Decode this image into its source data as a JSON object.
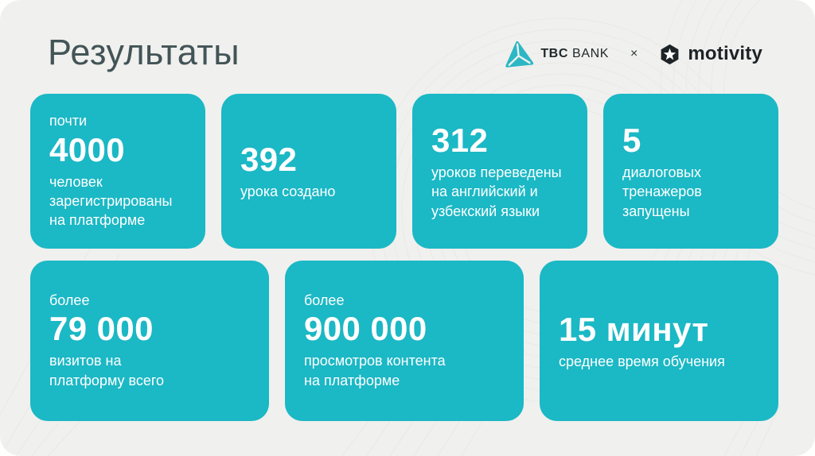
{
  "page": {
    "title": "Результаты"
  },
  "header": {
    "tbc_logo_text_bold": "TBC",
    "tbc_logo_text_regular": "BANK",
    "separator": "×",
    "motivity_logo_text": "motivity"
  },
  "colors": {
    "background": "#f0f0ee",
    "card": "#1bb8c5",
    "card_text": "#ffffff",
    "title": "#425456",
    "logo_dark": "#1d2326",
    "tbc_teal": "#2cb7c4"
  },
  "cards": [
    {
      "row": 1,
      "prefix": "почти",
      "value": "4000",
      "label": "человек\nзарегистрированы\nна платформе"
    },
    {
      "row": 1,
      "value": "392",
      "label": "урока создано"
    },
    {
      "row": 1,
      "value": "312",
      "label": "уроков переведены\nна английский и\nузбекский языки"
    },
    {
      "row": 1,
      "value": "5",
      "label": "диалоговых\nтренажеров\nзапущены"
    },
    {
      "row": 2,
      "prefix": "более",
      "value": "79 000",
      "label": "визитов на\nплатформу всего"
    },
    {
      "row": 2,
      "prefix": "более",
      "value": "900 000",
      "label": "просмотров контента\nна платформе"
    },
    {
      "row": 2,
      "value": "15 минут",
      "label": "среднее время обучения"
    }
  ]
}
